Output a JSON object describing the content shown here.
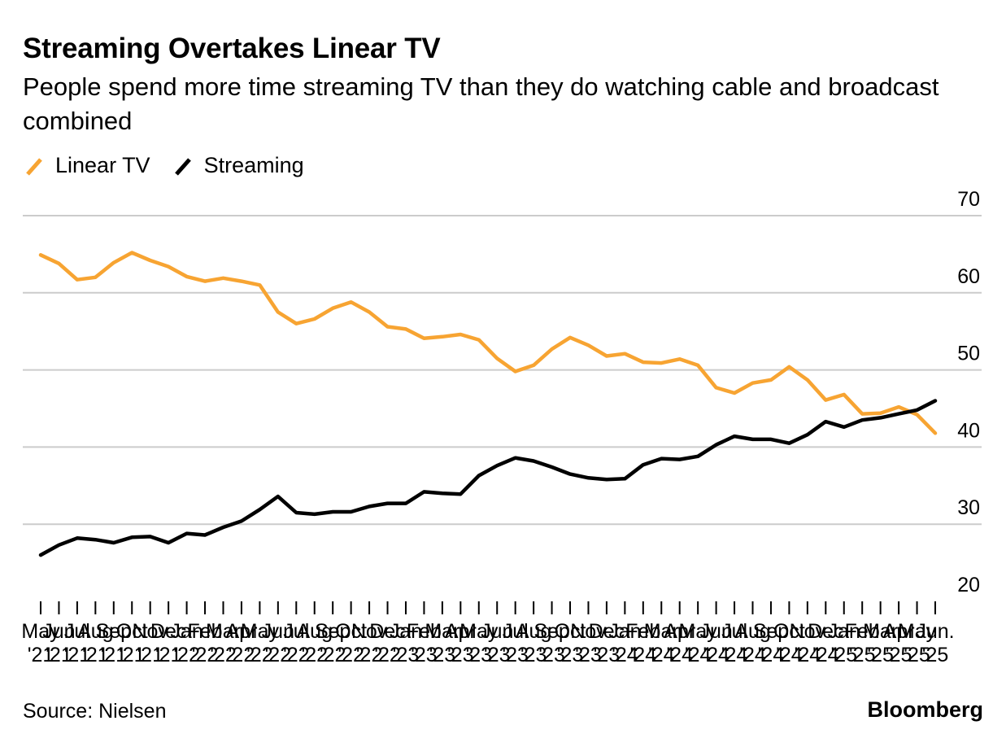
{
  "header": {
    "title": "Streaming Overtakes Linear TV",
    "subtitle": "People spend more time streaming TV than they do watching cable and broadcast combined"
  },
  "legend": [
    {
      "label": "Linear TV",
      "color": "#f7a432"
    },
    {
      "label": "Streaming",
      "color": "#000000"
    }
  ],
  "footer": {
    "source": "Source: Nielsen",
    "brand": "Bloomberg"
  },
  "chart_data": {
    "type": "line",
    "x": [
      "May '21",
      "Jun '21",
      "Jul '21",
      "Aug '21",
      "Sep '21",
      "Oct '21",
      "Nov '21",
      "Dec '21",
      "Jan '22",
      "Feb '22",
      "Mar '22",
      "Apr '22",
      "May '22",
      "Jun '22",
      "Jul '22",
      "Aug '22",
      "Sep '22",
      "Oct '22",
      "Nov '22",
      "Dec '22",
      "Jan '23",
      "Feb '23",
      "Mar '23",
      "Apr '23",
      "May '23",
      "Jun '23",
      "Jul '23",
      "Aug '23",
      "Sep '23",
      "Oct '23",
      "Nov '23",
      "Dec '23",
      "Jan '24",
      "Feb '24",
      "Mar '24",
      "Apr '24",
      "May '24",
      "Jun '24",
      "Jul '24",
      "Aug '24",
      "Sep '24",
      "Oct '24",
      "Nov '24",
      "Dec '24",
      "Jan '25",
      "Feb '25",
      "Mar '25",
      "Apr '25",
      "May '25",
      "Jun. '25"
    ],
    "series": [
      {
        "name": "Linear TV",
        "color": "#f7a432",
        "values": [
          64.9,
          63.8,
          61.7,
          62.0,
          63.9,
          65.2,
          64.2,
          63.4,
          62.1,
          61.5,
          61.9,
          61.5,
          61.0,
          57.5,
          56.0,
          56.6,
          58.0,
          58.8,
          57.5,
          55.6,
          55.3,
          54.1,
          54.3,
          54.6,
          53.9,
          51.5,
          49.8,
          50.6,
          52.7,
          54.2,
          53.2,
          51.8,
          52.1,
          51.0,
          50.9,
          51.4,
          50.6,
          47.7,
          47.0,
          48.3,
          48.7,
          50.4,
          48.7,
          46.1,
          46.8,
          44.3,
          44.4,
          45.2,
          44.2,
          41.8
        ]
      },
      {
        "name": "Streaming",
        "color": "#000000",
        "values": [
          26.0,
          27.3,
          28.2,
          28.0,
          27.6,
          28.3,
          28.4,
          27.6,
          28.8,
          28.6,
          29.6,
          30.4,
          31.9,
          33.6,
          31.5,
          31.3,
          31.6,
          31.6,
          32.3,
          32.7,
          32.7,
          34.2,
          34.0,
          33.9,
          36.3,
          37.6,
          38.6,
          38.2,
          37.4,
          36.5,
          36.0,
          35.8,
          35.9,
          37.7,
          38.5,
          38.4,
          38.8,
          40.3,
          41.4,
          41.0,
          41.0,
          40.5,
          41.6,
          43.3,
          42.6,
          43.5,
          43.8,
          44.3,
          44.8,
          46.0
        ]
      }
    ],
    "y_ticks": [
      "20",
      "30",
      "40",
      "50",
      "60",
      "70"
    ],
    "ylim": [
      20,
      70
    ],
    "y_axis_side": "right",
    "x_tick_labels": [
      {
        "top": "May",
        "bottom": "'21"
      },
      {
        "top": "Jun",
        "bottom": "'21"
      },
      {
        "top": "Jul",
        "bottom": "'21"
      },
      {
        "top": "Aug",
        "bottom": "'21"
      },
      {
        "top": "Sep",
        "bottom": "'21"
      },
      {
        "top": "Oct",
        "bottom": "'21"
      },
      {
        "top": "Nov",
        "bottom": "'21"
      },
      {
        "top": "Dec",
        "bottom": "'21"
      },
      {
        "top": "Jan",
        "bottom": "'22"
      },
      {
        "top": "Feb",
        "bottom": "'22"
      },
      {
        "top": "Mar",
        "bottom": "'22"
      },
      {
        "top": "Apr",
        "bottom": "'22"
      },
      {
        "top": "May",
        "bottom": "'22"
      },
      {
        "top": "Jun",
        "bottom": "'22"
      },
      {
        "top": "Jul",
        "bottom": "'22"
      },
      {
        "top": "Aug",
        "bottom": "'22"
      },
      {
        "top": "Sep",
        "bottom": "'22"
      },
      {
        "top": "Oct",
        "bottom": "'22"
      },
      {
        "top": "Nov",
        "bottom": "'22"
      },
      {
        "top": "Dec",
        "bottom": "'22"
      },
      {
        "top": "Jan",
        "bottom": "'23"
      },
      {
        "top": "Feb",
        "bottom": "'23"
      },
      {
        "top": "Mar",
        "bottom": "'23"
      },
      {
        "top": "Apr",
        "bottom": "'23"
      },
      {
        "top": "May",
        "bottom": "'23"
      },
      {
        "top": "Jun",
        "bottom": "'23"
      },
      {
        "top": "Jul",
        "bottom": "'23"
      },
      {
        "top": "Aug",
        "bottom": "'23"
      },
      {
        "top": "Sep",
        "bottom": "'23"
      },
      {
        "top": "Oct",
        "bottom": "'23"
      },
      {
        "top": "Nov",
        "bottom": "'23"
      },
      {
        "top": "Dec",
        "bottom": "'23"
      },
      {
        "top": "Jan",
        "bottom": "'24"
      },
      {
        "top": "Feb",
        "bottom": "'24"
      },
      {
        "top": "Mar",
        "bottom": "'24"
      },
      {
        "top": "Apr",
        "bottom": "'24"
      },
      {
        "top": "May",
        "bottom": "'24"
      },
      {
        "top": "Jun",
        "bottom": "'24"
      },
      {
        "top": "Jul",
        "bottom": "'24"
      },
      {
        "top": "Aug",
        "bottom": "'24"
      },
      {
        "top": "Sep",
        "bottom": "'24"
      },
      {
        "top": "Oct",
        "bottom": "'24"
      },
      {
        "top": "Nov",
        "bottom": "'24"
      },
      {
        "top": "Dec",
        "bottom": "'24"
      },
      {
        "top": "Jan",
        "bottom": "'25"
      },
      {
        "top": "Feb",
        "bottom": "'25"
      },
      {
        "top": "Mar",
        "bottom": "'25"
      },
      {
        "top": "Apr",
        "bottom": "'25"
      },
      {
        "top": "May",
        "bottom": "'25"
      },
      {
        "top": "Jun.",
        "bottom": "'25"
      }
    ],
    "grid": true,
    "legend_position": "top-left"
  }
}
